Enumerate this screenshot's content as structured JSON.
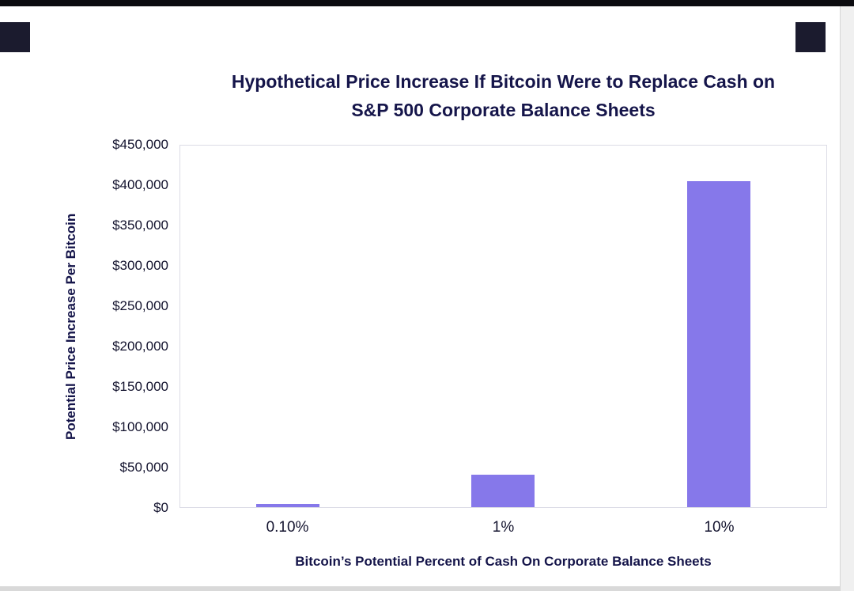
{
  "chart_data": {
    "type": "bar",
    "title": "Hypothetical Price Increase If Bitcoin Were to Replace Cash on S&P 500 Corporate Balance Sheets",
    "xlabel": "Bitcoin’s Potential Percent of Cash On Corporate Balance Sheets",
    "ylabel": "Potential Price Increase Per Bitcoin",
    "categories": [
      "0.10%",
      "1%",
      "10%"
    ],
    "values": [
      4000,
      41000,
      406000
    ],
    "ylim": [
      0,
      450000
    ],
    "y_ticks": [
      "$450,000",
      "$400,000",
      "$350,000",
      "$300,000",
      "$250,000",
      "$200,000",
      "$150,000",
      "$100,000",
      "$50,000",
      "$0"
    ],
    "grid": false,
    "legend": false,
    "bar_color": "#8678EA"
  }
}
